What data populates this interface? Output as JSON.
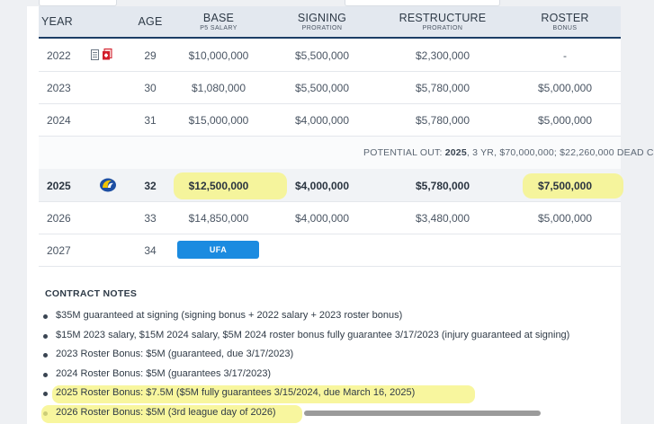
{
  "table": {
    "headers": {
      "year": "YEAR",
      "age": "AGE",
      "base": "BASE",
      "base_sub": "P5 SALARY",
      "signing": "SIGNING",
      "signing_sub": "PRORATION",
      "restructure": "RESTRUCTURE",
      "restructure_sub": "PRORATION",
      "roster": "ROSTER",
      "roster_sub": "BONUS"
    },
    "rows": [
      {
        "year": "2022",
        "age": "29",
        "base": "$10,000,000",
        "signing": "$5,500,000",
        "restructure": "$2,300,000",
        "roster": "-"
      },
      {
        "year": "2023",
        "age": "30",
        "base": "$1,080,000",
        "signing": "$5,500,000",
        "restructure": "$5,780,000",
        "roster": "$5,000,000"
      },
      {
        "year": "2024",
        "age": "31",
        "base": "$15,000,000",
        "signing": "$4,000,000",
        "restructure": "$5,780,000",
        "roster": "$5,000,000"
      },
      {
        "year": "2025",
        "age": "32",
        "base": "$12,500,000",
        "signing": "$4,000,000",
        "restructure": "$5,780,000",
        "roster": "$7,500,000"
      },
      {
        "year": "2026",
        "age": "33",
        "base": "$14,850,000",
        "signing": "$4,000,000",
        "restructure": "$3,480,000",
        "roster": "$5,000,000"
      },
      {
        "year": "2027",
        "age": "34",
        "status": "UFA"
      }
    ],
    "potential_out": {
      "prefix": "POTENTIAL OUT: ",
      "year": "2025",
      "detail": ", 3 YR, $70,000,000; $22,260,000 DEAD C"
    }
  },
  "notes": {
    "title": "CONTRACT NOTES",
    "items": [
      "$35M guaranteed at signing (signing bonus + 2022 salary + 2023 roster bonus)",
      "$15M 2023 salary, $15M 2024 salary, $5M 2024 roster bonus fully guarantee 3/17/2023 (injury guaranteed at signing)",
      "2023 Roster Bonus: $5M (guaranteed, due 3/17/2023)",
      "2024 Roster Bonus: $5M (guarantees 3/17/2023)",
      "2025 Roster Bonus: $7.5M ($5M fully guarantees 3/15/2024, due March 16, 2025)",
      "2026 Roster Bonus: $5M (3rd league day of 2026)"
    ]
  },
  "colors": {
    "header_bg": "#e3e8ef",
    "header_rule": "#1c3e66",
    "ufa_badge": "#1b8be0",
    "highlighter": "#f6f383",
    "team_logo_blue": "#1e4fa3",
    "team_logo_gold": "#f2c400"
  },
  "icons": [
    "document-icon",
    "pdf-icon",
    "team-logo-icon"
  ]
}
